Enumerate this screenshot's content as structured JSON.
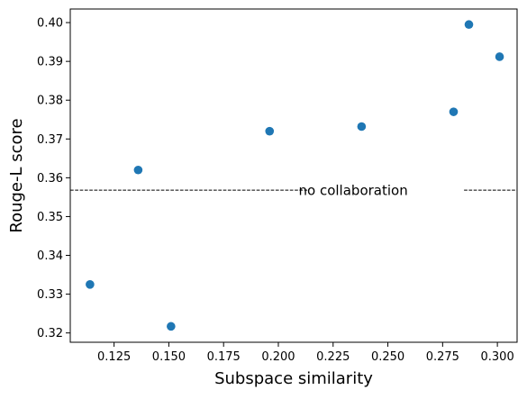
{
  "chart_data": {
    "type": "scatter",
    "xlabel": "Subspace similarity",
    "ylabel": "Rouge-L score",
    "xlim": [
      0.105,
      0.309
    ],
    "ylim": [
      0.3176,
      0.4035
    ],
    "xticks": [
      "0.125",
      "0.150",
      "0.175",
      "0.200",
      "0.225",
      "0.250",
      "0.275",
      "0.300"
    ],
    "yticks": [
      "0.32",
      "0.33",
      "0.34",
      "0.35",
      "0.36",
      "0.37",
      "0.38",
      "0.39",
      "0.40"
    ],
    "marker_color": "#1f77b4",
    "series": [
      {
        "x": [
          0.114,
          0.136,
          0.151,
          0.196,
          0.238,
          0.28,
          0.287,
          0.301
        ],
        "y": [
          0.3325,
          0.362,
          0.3217,
          0.372,
          0.3732,
          0.377,
          0.3995,
          0.3912
        ]
      }
    ],
    "reference_line": {
      "y": 0.3568,
      "style": "dashed",
      "color": "#000000",
      "label": "no collaboration"
    },
    "grid": false,
    "legend": "none"
  }
}
